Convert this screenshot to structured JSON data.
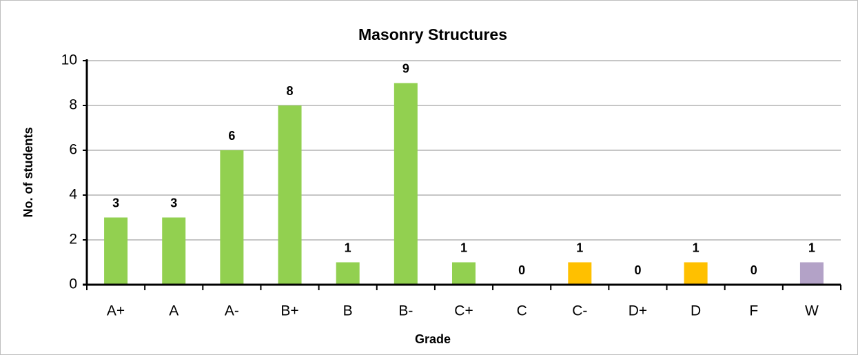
{
  "chart_data": {
    "type": "bar",
    "title": "Masonry Structures",
    "x_label": "Grade",
    "y_label": "No. of students",
    "categories": [
      "A+",
      "A",
      "A-",
      "B+",
      "B",
      "B-",
      "C+",
      "C",
      "C-",
      "D+",
      "D",
      "F",
      "W"
    ],
    "values": [
      3,
      3,
      6,
      8,
      1,
      9,
      1,
      0,
      1,
      0,
      1,
      0,
      1
    ],
    "colors": [
      "#92d050",
      "#92d050",
      "#92d050",
      "#92d050",
      "#92d050",
      "#92d050",
      "#92d050",
      "#92d050",
      "#ffc000",
      "#92d050",
      "#ffc000",
      "#92d050",
      "#b3a2c7"
    ],
    "ylim": [
      0,
      10
    ],
    "yticks": [
      0,
      2,
      4,
      6,
      8,
      10
    ],
    "grid": true
  }
}
